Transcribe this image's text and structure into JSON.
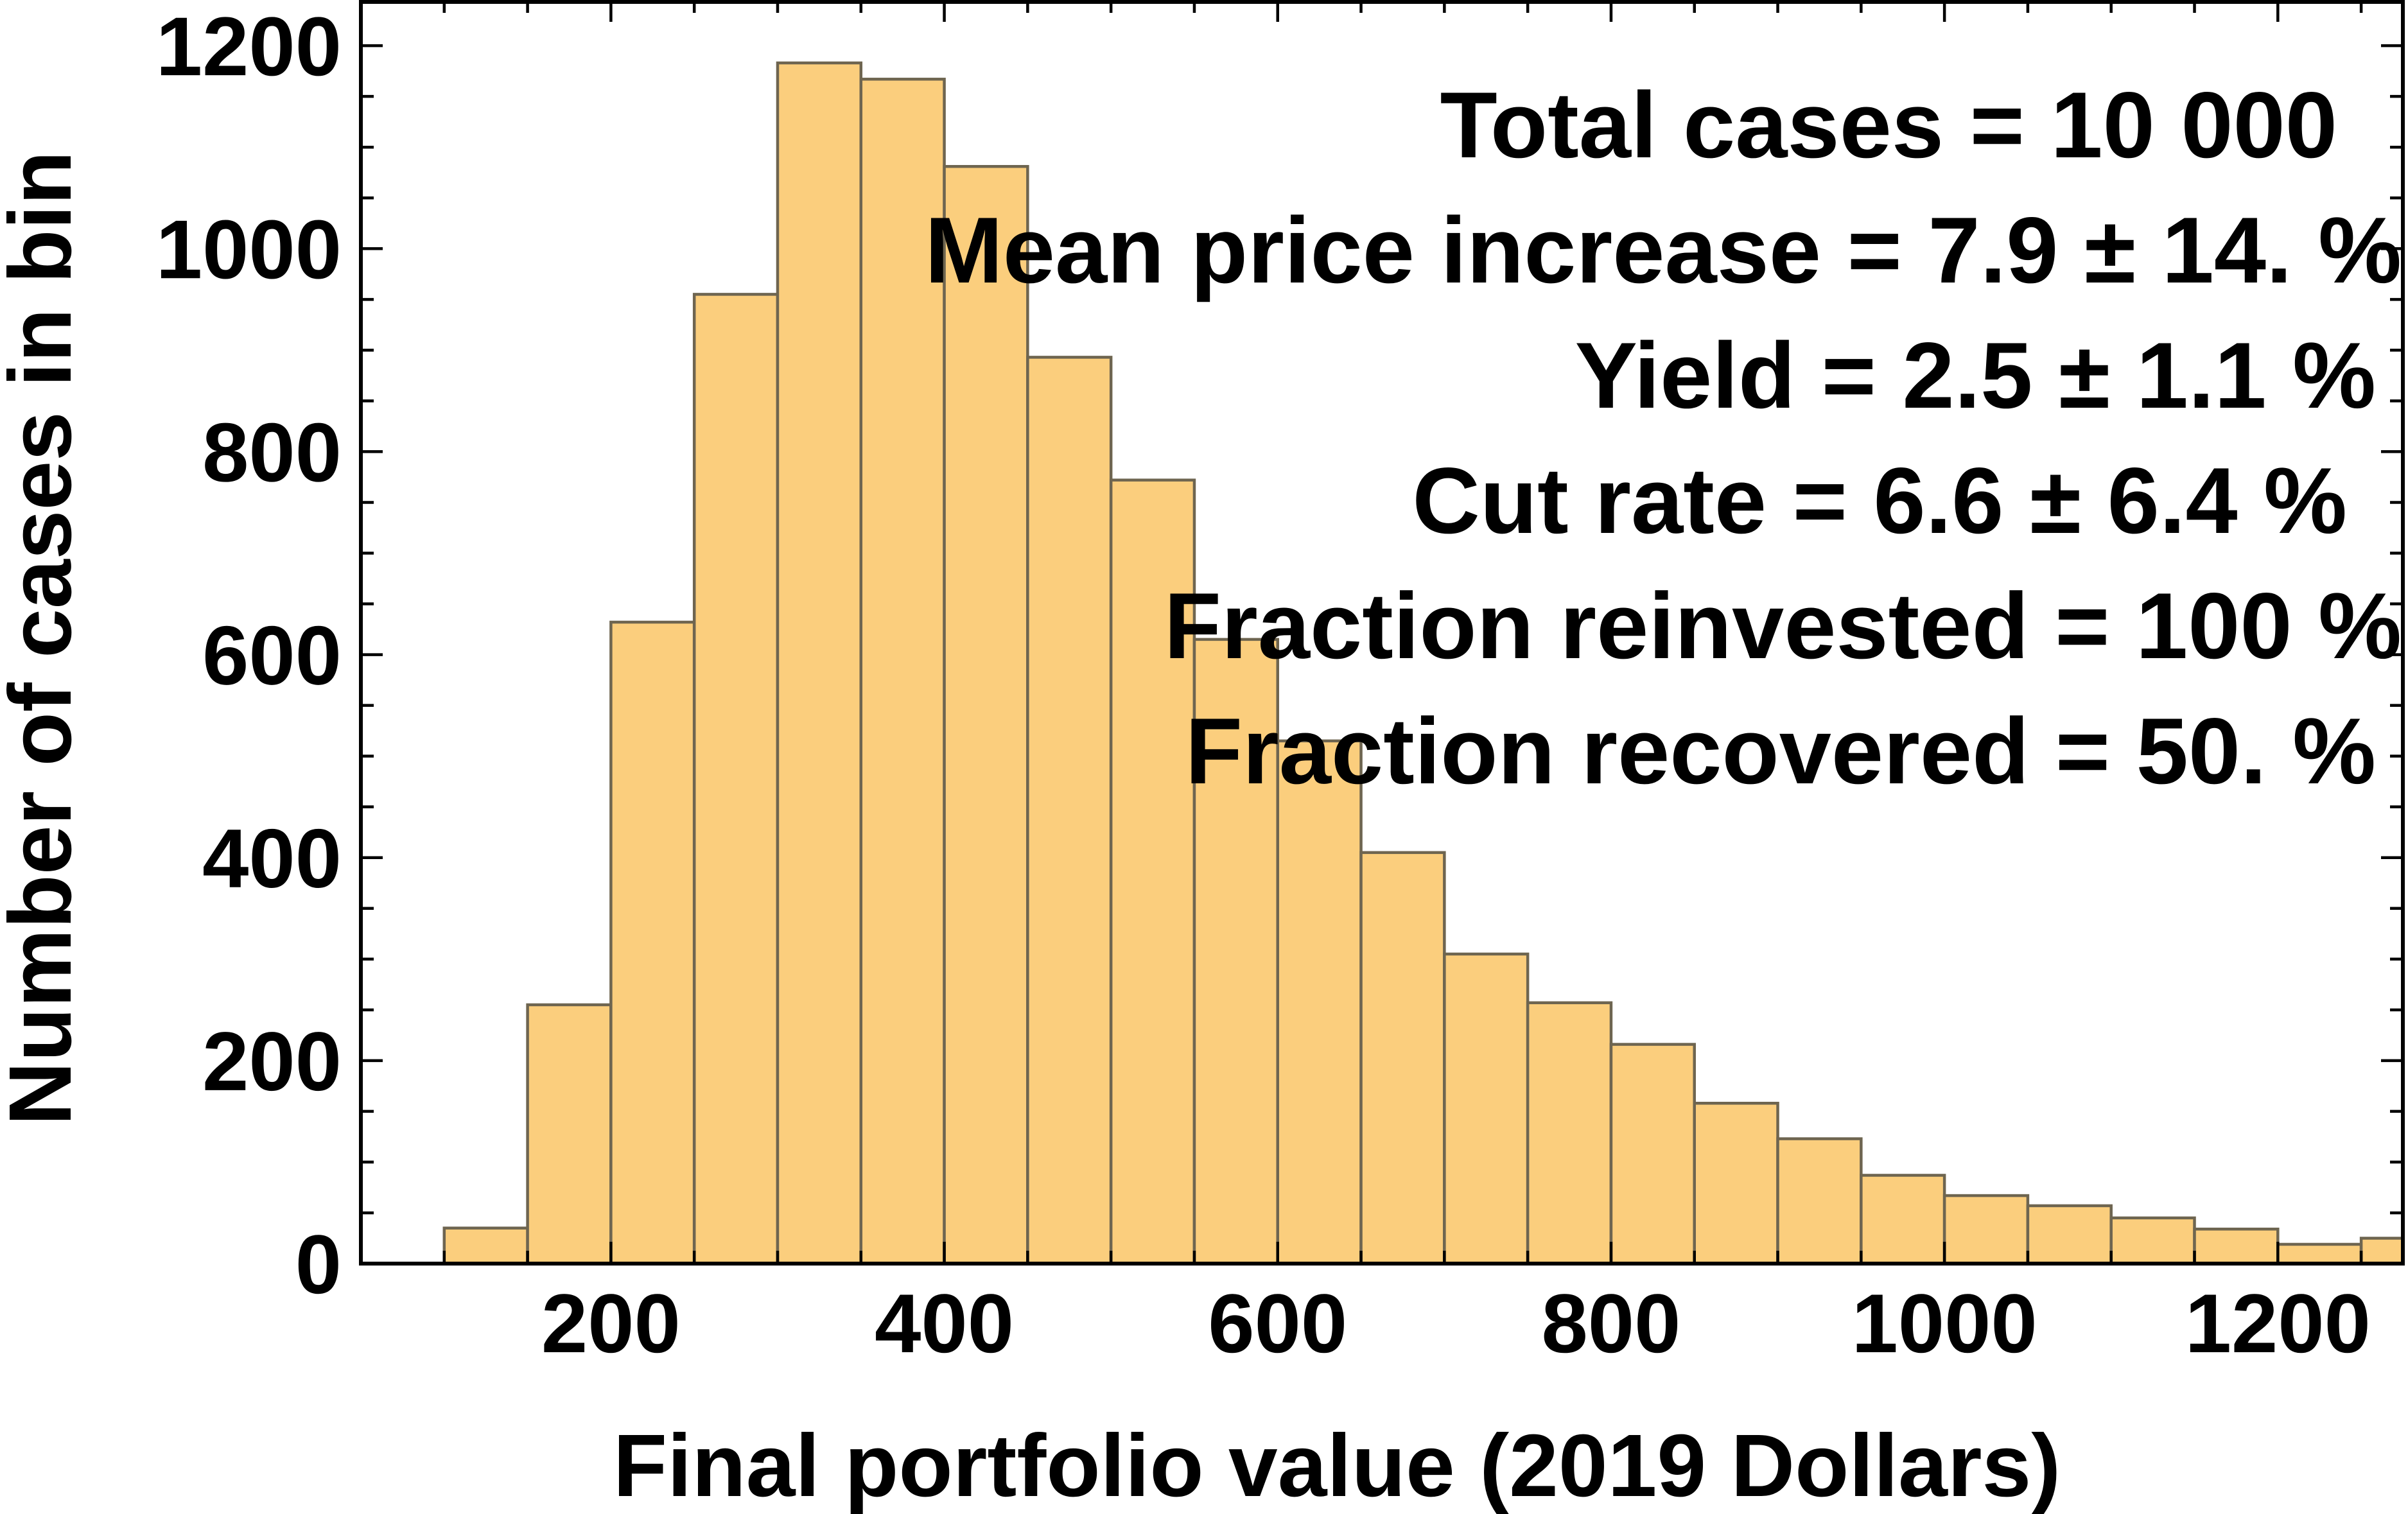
{
  "chart_data": {
    "type": "bar",
    "subtype": "histogram",
    "xlabel": "Final portfolio value (2019 Dollars)",
    "ylabel": "Number of cases in bin",
    "xlim": [
      50,
      1275
    ],
    "ylim": [
      0,
      1245
    ],
    "x_ticks": [
      200,
      400,
      600,
      800,
      1000,
      1200
    ],
    "y_ticks": [
      0,
      200,
      400,
      600,
      800,
      1000,
      1200
    ],
    "x_tick_labels": [
      "200",
      "400",
      "600",
      "800",
      "1000",
      "1200"
    ],
    "y_tick_labels": [
      "0",
      "200",
      "400",
      "600",
      "800",
      "1000",
      "1200"
    ],
    "bin_width": 50,
    "bins": [
      {
        "from": 100,
        "to": 150,
        "count": 35
      },
      {
        "from": 150,
        "to": 200,
        "count": 255
      },
      {
        "from": 200,
        "to": 250,
        "count": 632
      },
      {
        "from": 250,
        "to": 300,
        "count": 955
      },
      {
        "from": 300,
        "to": 350,
        "count": 1183
      },
      {
        "from": 350,
        "to": 400,
        "count": 1167
      },
      {
        "from": 400,
        "to": 450,
        "count": 1081
      },
      {
        "from": 450,
        "to": 500,
        "count": 893
      },
      {
        "from": 500,
        "to": 550,
        "count": 772
      },
      {
        "from": 550,
        "to": 600,
        "count": 615
      },
      {
        "from": 600,
        "to": 650,
        "count": 515
      },
      {
        "from": 650,
        "to": 700,
        "count": 405
      },
      {
        "from": 700,
        "to": 750,
        "count": 305
      },
      {
        "from": 750,
        "to": 800,
        "count": 257
      },
      {
        "from": 800,
        "to": 850,
        "count": 216
      },
      {
        "from": 850,
        "to": 900,
        "count": 158
      },
      {
        "from": 900,
        "to": 950,
        "count": 123
      },
      {
        "from": 950,
        "to": 1000,
        "count": 87
      },
      {
        "from": 1000,
        "to": 1050,
        "count": 67
      },
      {
        "from": 1050,
        "to": 1100,
        "count": 57
      },
      {
        "from": 1100,
        "to": 1150,
        "count": 45
      },
      {
        "from": 1150,
        "to": 1200,
        "count": 34
      },
      {
        "from": 1200,
        "to": 1250,
        "count": 19
      },
      {
        "from": 1250,
        "to": 1300,
        "count": 25
      }
    ],
    "annotations": [
      "Total cases = 10 000",
      "Mean price increase = 7.9 ± 14. %",
      "Yield = 2.5 ± 1.1 %",
      "Cut rate = 6.6 ± 6.4 %",
      "Fraction reinvested = 100 %",
      "Fraction recovered = 50. %"
    ],
    "grid": false,
    "legend": "none",
    "colors": {
      "bar_fill": "#fbce7d",
      "bar_stroke": "#6e6550",
      "axis": "#000000"
    }
  }
}
